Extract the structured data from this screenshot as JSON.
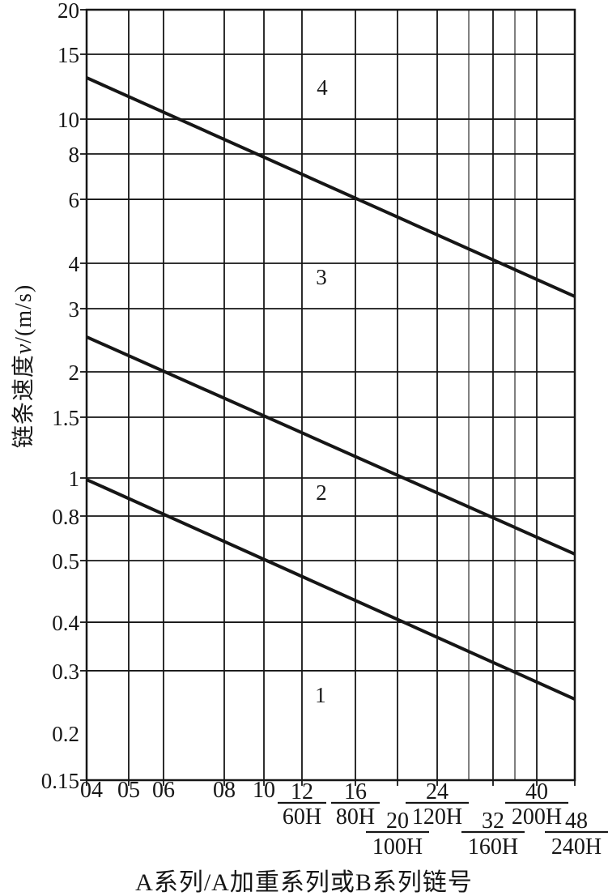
{
  "figure": {
    "xlabel": "A系列/A加重系列或B系列链号",
    "ylabel": "链条速度v/(m/s)",
    "ylabel_parts": {
      "prefix": "链条速度",
      "symbol": "v",
      "suffix": "/(m/s)"
    }
  },
  "chart_data": {
    "type": "line",
    "title": "",
    "xlabel": "A系列/A加重系列或B系列链号",
    "ylabel": "链条速度 v/(m/s)",
    "x_axis": {
      "scale": "log",
      "range": [
        "04",
        "48"
      ]
    },
    "y_axis": {
      "scale": "log",
      "range": [
        0.15,
        20
      ]
    },
    "grid": true,
    "legend": false,
    "x_ticks": [
      {
        "label": "04"
      },
      {
        "label": "05"
      },
      {
        "label": "06"
      },
      {
        "label": "08"
      },
      {
        "label": "10"
      },
      {
        "label": "12",
        "sub_label": "60H",
        "row": 1
      },
      {
        "label": "16",
        "sub_label": "80H",
        "row": 1
      },
      {
        "label": "20",
        "sub_label": "100H",
        "row": 2
      },
      {
        "label": "24",
        "sub_label": "120H",
        "row": 1
      },
      {
        "label": "32",
        "sub_label": "160H",
        "row": 2
      },
      {
        "label": "40",
        "sub_label": "200H",
        "row": 1
      },
      {
        "label": "48",
        "sub_label": "240H",
        "row": 2
      }
    ],
    "unlabeled_x_gridlines": [
      "28",
      "36"
    ],
    "y_ticks": [
      "20",
      "15",
      "10",
      "8",
      "6",
      "4",
      "3",
      "2",
      "1.5",
      "1",
      "0.8",
      "0.5",
      "0.4",
      "0.3",
      "0.2",
      "0.15"
    ],
    "y_tick_without_gridline": "0.2",
    "series": [
      {
        "name": "boundary-line-3-4",
        "points": [
          {
            "x": "04",
            "v": 12.8
          },
          {
            "x": "48",
            "v": 3.2
          }
        ]
      },
      {
        "name": "boundary-line-2-3",
        "points": [
          {
            "x": "04",
            "v": 2.5
          },
          {
            "x": "48",
            "v": 0.55
          }
        ]
      },
      {
        "name": "boundary-line-1-2",
        "points": [
          {
            "x": "04",
            "v": 1.0
          },
          {
            "x": "48",
            "v": 0.26
          }
        ]
      }
    ],
    "region_labels": [
      "1",
      "2",
      "3",
      "4"
    ]
  }
}
